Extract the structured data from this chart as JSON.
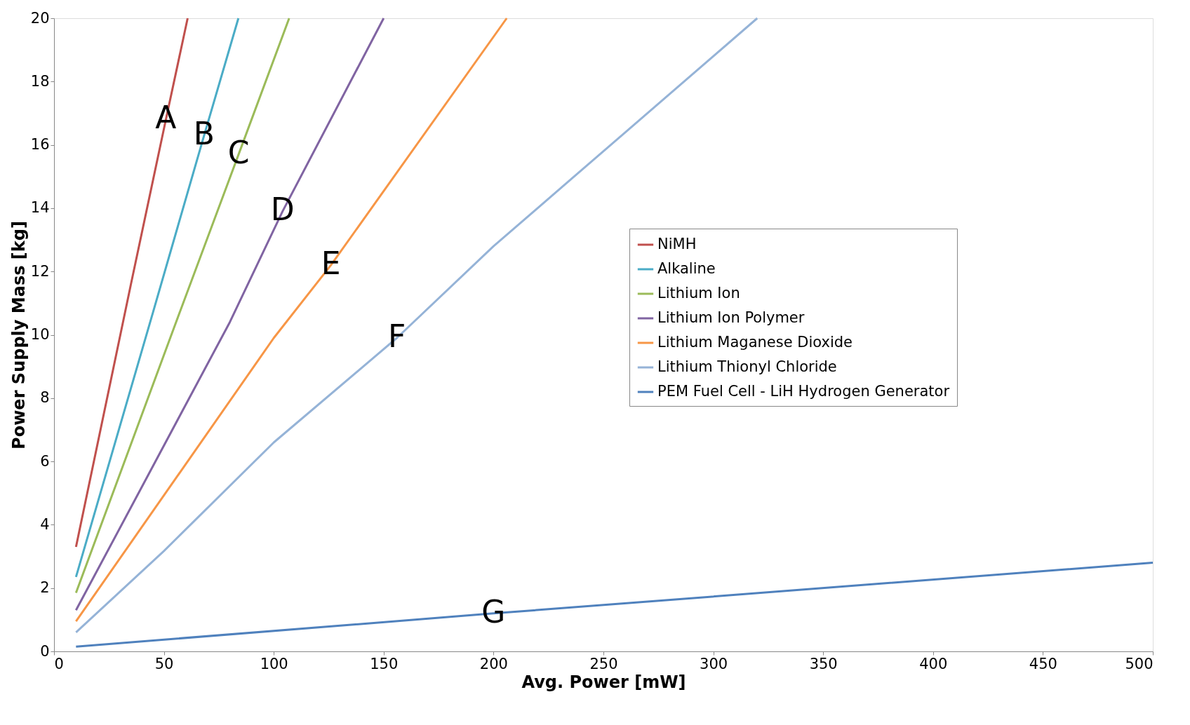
{
  "chart_data": {
    "type": "line",
    "xlabel": "Avg. Power [mW]",
    "ylabel": "Power Supply Mass [kg]",
    "xlim": [
      0,
      500
    ],
    "ylim": [
      0,
      20
    ],
    "xticks": [
      0,
      50,
      100,
      150,
      200,
      250,
      300,
      350,
      400,
      450,
      500
    ],
    "yticks": [
      0,
      2,
      4,
      6,
      8,
      10,
      12,
      14,
      16,
      18,
      20
    ],
    "grid": false,
    "legend": "right",
    "marker": "none",
    "line_style": "solid",
    "series": [
      {
        "name": "NiMH",
        "color": "#c0504d",
        "x": [
          10,
          35,
          50.9,
          60.8
        ],
        "values": [
          3.3,
          11.6,
          16.8,
          20
        ]
      },
      {
        "name": "Alkaline",
        "color": "#4bacc6",
        "x": [
          10,
          45,
          68.3,
          83.9
        ],
        "values": [
          2.35,
          10.7,
          16.3,
          20
        ]
      },
      {
        "name": "Lithium Ion",
        "color": "#9bbb59",
        "x": [
          10,
          55,
          84,
          107
        ],
        "values": [
          1.85,
          10.3,
          15.7,
          20
        ]
      },
      {
        "name": "Lithium Ion Polymer",
        "color": "#8064a2",
        "x": [
          10,
          80,
          104,
          150
        ],
        "values": [
          1.3,
          10.4,
          13.9,
          20
        ]
      },
      {
        "name": "Lithium Maganese Dioxide",
        "color": "#f79646",
        "x": [
          10,
          100,
          126,
          206
        ],
        "values": [
          0.95,
          9.9,
          12.2,
          20
        ]
      },
      {
        "name": "Lithium Thionyl Chloride",
        "color": "#95b3d7",
        "x": [
          10,
          50,
          100,
          156,
          200,
          260,
          320
        ],
        "values": [
          0.6,
          3.17,
          6.6,
          9.9,
          12.8,
          16.4,
          20
        ]
      },
      {
        "name": "PEM Fuel Cell - LiH Hydrogen Generator",
        "color": "#4f81bd",
        "x": [
          10,
          200,
          500
        ],
        "values": [
          0.15,
          1.2,
          2.8
        ]
      }
    ],
    "annotations": [
      {
        "text": "A",
        "x": 50.9,
        "y": 16.8
      },
      {
        "text": "B",
        "x": 68.3,
        "y": 16.3
      },
      {
        "text": "C",
        "x": 84,
        "y": 15.7
      },
      {
        "text": "D",
        "x": 104,
        "y": 13.9
      },
      {
        "text": "E",
        "x": 126,
        "y": 12.2
      },
      {
        "text": "F",
        "x": 156,
        "y": 9.9
      },
      {
        "text": "G",
        "x": 200,
        "y": 1.2
      }
    ]
  }
}
